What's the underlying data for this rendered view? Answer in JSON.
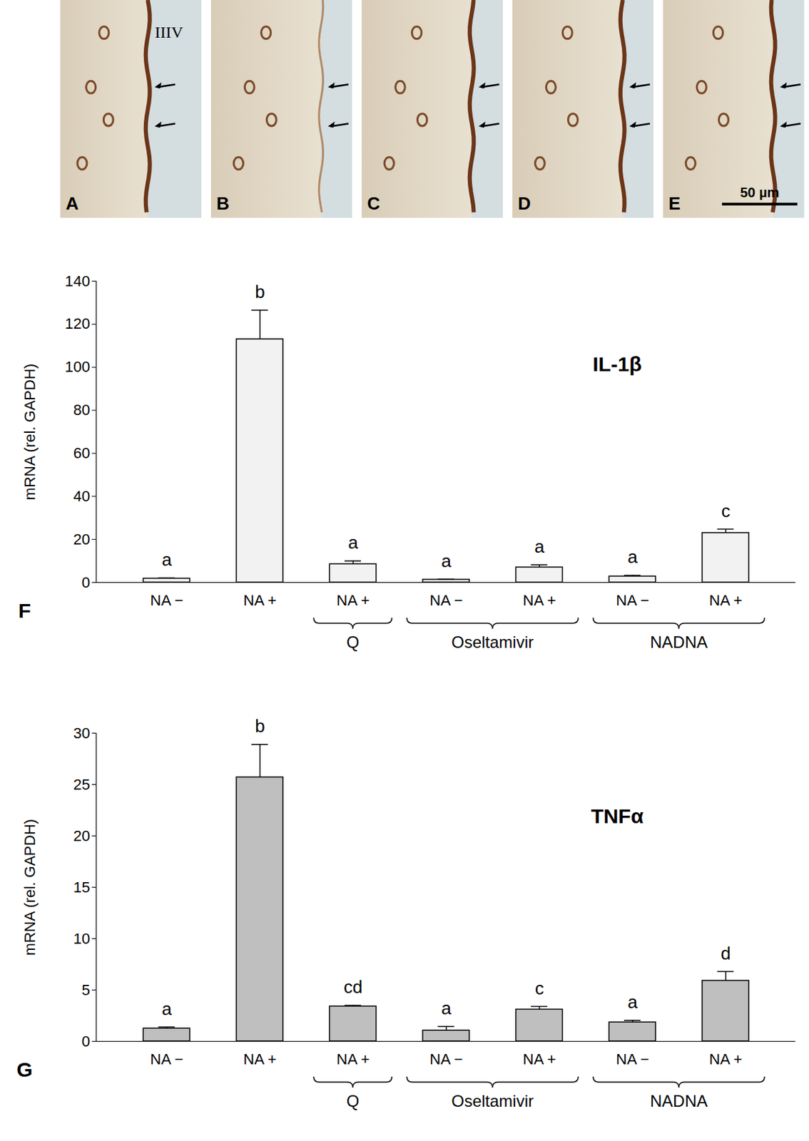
{
  "panels": {
    "labels": [
      "A",
      "B",
      "C",
      "D",
      "E"
    ],
    "annotation": "IIIV",
    "scale_bar": "50 µm"
  },
  "chart_data": [
    {
      "type": "bar",
      "panel": "F",
      "title": "IL-1β",
      "y_label": "mRNA (rel. GAPDH)",
      "categories": [
        "NA −",
        "NA +",
        "NA +",
        "NA −",
        "NA +",
        "NA −",
        "NA +"
      ],
      "groups": [
        null,
        null,
        "Q",
        "Oseltamivir",
        "Oseltamivir",
        "NADNA",
        "NADNA"
      ],
      "values": [
        1.8,
        113,
        8.5,
        1.3,
        7,
        2.8,
        23
      ],
      "errors": [
        0.3,
        13.5,
        1.5,
        0.3,
        1.2,
        0.5,
        1.8
      ],
      "letters": [
        "a",
        "b",
        "a",
        "a",
        "a",
        "a",
        "c"
      ],
      "color": "#f2f2f2",
      "ylim": [
        0,
        140
      ],
      "yticks": [
        0,
        20,
        40,
        60,
        80,
        100,
        120,
        140
      ]
    },
    {
      "type": "bar",
      "panel": "G",
      "title": "TNFα",
      "y_label": "mRNA (rel. GAPDH)",
      "categories": [
        "NA −",
        "NA +",
        "NA +",
        "NA −",
        "NA +",
        "NA −",
        "NA +"
      ],
      "groups": [
        null,
        null,
        "Q",
        "Oseltamivir",
        "Oseltamivir",
        "NADNA",
        "NADNA"
      ],
      "values": [
        1.25,
        25.7,
        3.4,
        1.05,
        3.1,
        1.85,
        5.9
      ],
      "errors": [
        0.15,
        3.2,
        0.1,
        0.4,
        0.3,
        0.2,
        0.9
      ],
      "letters": [
        "a",
        "b",
        "cd",
        "a",
        "c",
        "a",
        "d"
      ],
      "color": "#bfbfbf",
      "ylim": [
        0,
        30
      ],
      "yticks": [
        0,
        5,
        10,
        15,
        20,
        25,
        30
      ]
    }
  ]
}
